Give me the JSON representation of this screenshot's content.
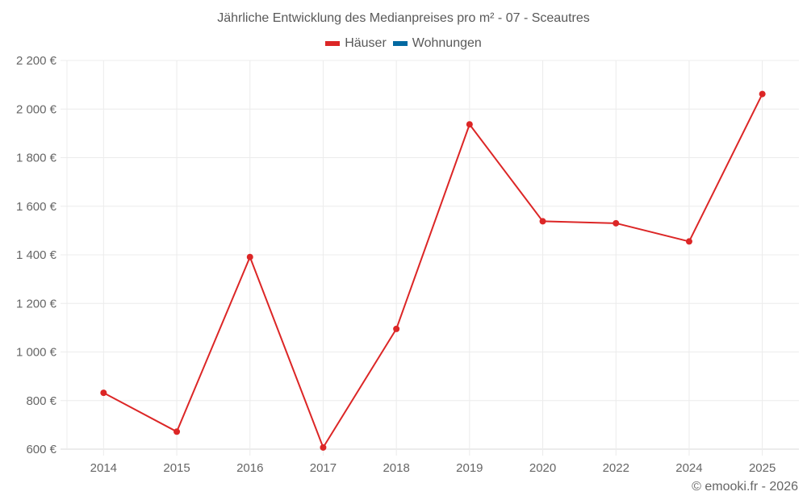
{
  "title": "Jährliche Entwicklung des Medianpreises pro m² - 07 - Sceautres",
  "legend": [
    {
      "label": "Häuser",
      "color": "#dc2626"
    },
    {
      "label": "Wohnungen",
      "color": "#0369a1"
    }
  ],
  "credit": "© emooki.fr - 2026",
  "chart_data": {
    "type": "line",
    "title": "Jährliche Entwicklung des Medianpreises pro m² - 07 - Sceautres",
    "xlabel": "",
    "ylabel": "",
    "categories": [
      "2014",
      "2015",
      "2016",
      "2017",
      "2018",
      "2019",
      "2020",
      "2022",
      "2024",
      "2025"
    ],
    "series": [
      {
        "name": "Häuser",
        "color": "#dc2626",
        "values": [
          832,
          672,
          1391,
          607,
          1095,
          1937,
          1538,
          1530,
          1455,
          2062
        ]
      },
      {
        "name": "Wohnungen",
        "color": "#0369a1",
        "values": []
      }
    ],
    "ylim": [
      600,
      2200
    ],
    "yticks": [
      600,
      800,
      1000,
      1200,
      1400,
      1600,
      1800,
      2000,
      2200
    ],
    "ytick_labels": [
      "600 €",
      "800 €",
      "1 000 €",
      "1 200 €",
      "1 400 €",
      "1 600 €",
      "1 800 €",
      "2 000 €",
      "2 200 €"
    ],
    "grid": true,
    "legend_position": "top"
  }
}
